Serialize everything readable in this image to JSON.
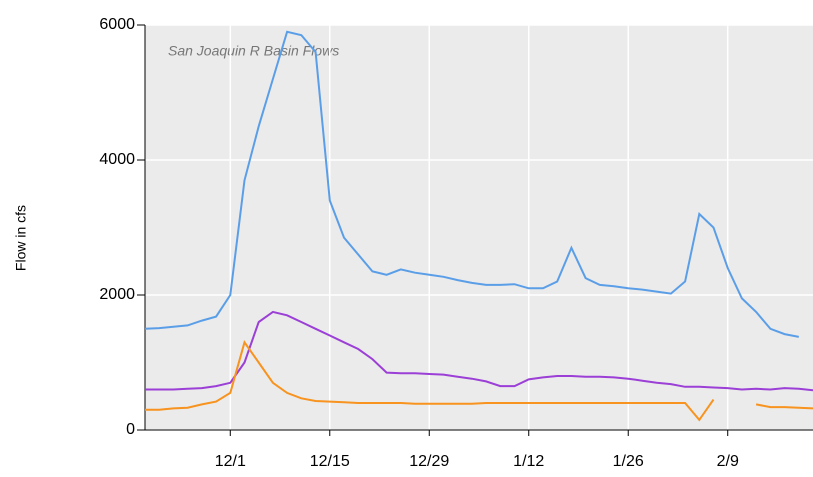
{
  "chart_data": {
    "type": "line",
    "title": "San Joaquin R Basin Flows",
    "y_label": "Flow in cfs",
    "categories": [
      null,
      null,
      null,
      null,
      null,
      null,
      "12/1",
      null,
      null,
      null,
      null,
      null,
      null,
      "12/15",
      null,
      null,
      null,
      null,
      null,
      null,
      "12/29",
      null,
      null,
      null,
      null,
      null,
      null,
      "1/12",
      null,
      null,
      null,
      null,
      null,
      null,
      "1/26",
      null,
      null,
      null,
      null,
      null,
      null,
      "2/9",
      null,
      null,
      null,
      null,
      null,
      null
    ],
    "series": [
      {
        "color": "#5b9ee8",
        "values": [
          1500,
          1510,
          1530,
          1550,
          1620,
          1680,
          2000,
          3700,
          4500,
          5200,
          5900,
          5850,
          5600,
          3400,
          2850,
          2600,
          2350,
          2300,
          2380,
          2330,
          2300,
          2270,
          2220,
          2180,
          2150,
          2150,
          2160,
          2100,
          2100,
          2200,
          2700,
          2250,
          2150,
          2130,
          2100,
          2080,
          2050,
          2020,
          2200,
          3200,
          3000,
          2400,
          1950,
          1750,
          1500,
          1420,
          1380,
          null
        ]
      },
      {
        "color": "#9b3fd6",
        "values": [
          600,
          600,
          600,
          610,
          620,
          650,
          700,
          1000,
          1600,
          1750,
          1700,
          1600,
          1500,
          1400,
          1300,
          1200,
          1050,
          850,
          840,
          840,
          830,
          820,
          790,
          760,
          720,
          650,
          650,
          750,
          780,
          800,
          800,
          790,
          790,
          780,
          760,
          730,
          700,
          680,
          640,
          640,
          630,
          620,
          600,
          610,
          600,
          620,
          610,
          590
        ]
      },
      {
        "color": "#f7931e",
        "values": [
          300,
          300,
          320,
          330,
          380,
          420,
          550,
          1300,
          1000,
          700,
          550,
          470,
          430,
          420,
          410,
          400,
          400,
          400,
          400,
          390,
          390,
          390,
          390,
          390,
          400,
          400,
          400,
          400,
          400,
          400,
          400,
          400,
          400,
          400,
          400,
          400,
          400,
          400,
          400,
          150,
          450,
          null,
          null,
          380,
          340,
          340,
          330,
          320
        ]
      }
    ],
    "ylim": [
      0,
      6000
    ],
    "yticks": [
      0,
      2000,
      4000,
      6000
    ],
    "grid": true
  }
}
